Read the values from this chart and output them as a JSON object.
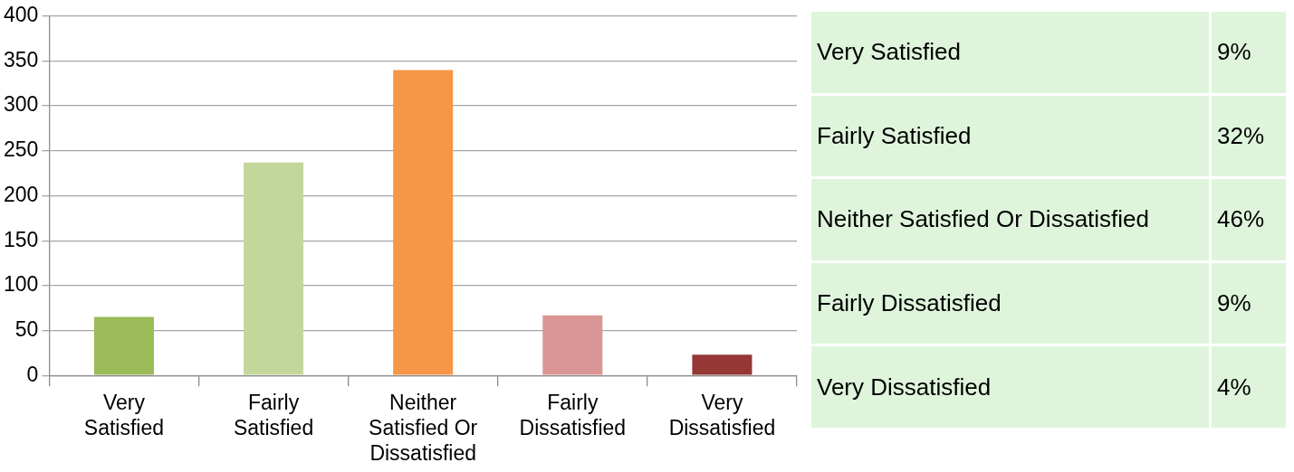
{
  "chart_data": [
    {
      "type": "bar",
      "categories": [
        "Very Satisfied",
        "Fairly Satisfied",
        "Neither Satisfied Or Dissatisfied",
        "Fairly Dissatisfied",
        "Very Dissatisfied"
      ],
      "values": [
        65,
        237,
        340,
        67,
        23
      ],
      "colors": [
        "#9bbb59",
        "#c4d79b",
        "#f79646",
        "#da9694",
        "#953735"
      ],
      "ylim": [
        0,
        400
      ],
      "yticks": [
        0,
        50,
        100,
        150,
        200,
        250,
        300,
        350,
        400
      ],
      "grid": "y",
      "legend": false
    },
    {
      "type": "other",
      "annotations": [
        "Very Satisfied",
        "9%",
        "Fairly Satisfied",
        "32%",
        "Neither Satisfied Or Dissatisfied",
        "46%",
        "Fairly Dissatisfied",
        "9%",
        "Very Dissatisfied",
        "4%"
      ]
    }
  ]
}
